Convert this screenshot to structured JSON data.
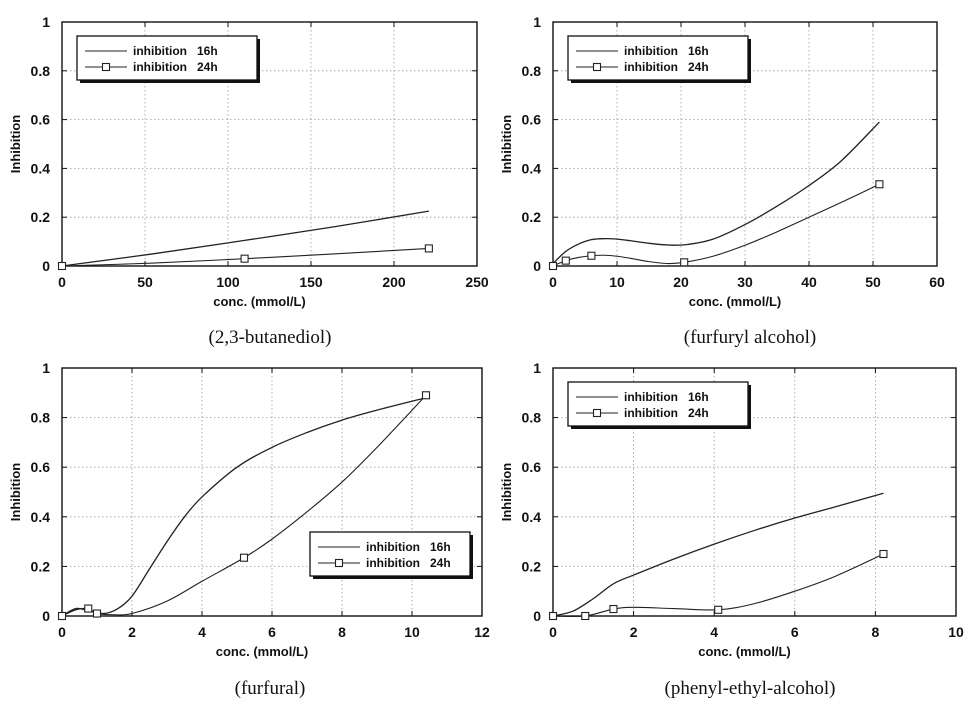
{
  "chart_data": [
    {
      "type": "line",
      "caption": "(2,3-butanediol)",
      "xlabel": "conc.  (mmol/L)",
      "ylabel": "Inhibition",
      "xlim": [
        0,
        250
      ],
      "ylim": [
        0,
        1
      ],
      "xticks": [
        0,
        50,
        100,
        150,
        200,
        250
      ],
      "yticks": [
        0,
        0.2,
        0.4,
        0.6,
        0.8,
        1
      ],
      "grid": true,
      "legend_position": "top-left",
      "series": [
        {
          "name": "inhibition   16h",
          "marker": "none",
          "x": [
            0,
            55,
            110,
            165,
            221
          ],
          "y": [
            0,
            0.05,
            0.105,
            0.162,
            0.225
          ],
          "points": []
        },
        {
          "name": "inhibition   24h",
          "marker": "square",
          "x": [
            0,
            55,
            110,
            165,
            221
          ],
          "y": [
            0,
            0.012,
            0.03,
            0.05,
            0.072
          ],
          "points": [
            0,
            2,
            4
          ]
        }
      ]
    },
    {
      "type": "line",
      "caption": "(furfuryl alcohol)",
      "xlabel": "conc.  (mmol/L)",
      "ylabel": "Inhibition",
      "xlim": [
        0,
        60
      ],
      "ylim": [
        0,
        1
      ],
      "xticks": [
        0,
        10,
        20,
        30,
        40,
        50,
        60
      ],
      "yticks": [
        0,
        0.2,
        0.4,
        0.6,
        0.8,
        1
      ],
      "grid": true,
      "legend_position": "top-left",
      "series": [
        {
          "name": "inhibition   16h",
          "marker": "none",
          "x": [
            0,
            2,
            4,
            6,
            8,
            10,
            12,
            15,
            18,
            21,
            25,
            30,
            35,
            40,
            45,
            51
          ],
          "y": [
            0.01,
            0.06,
            0.09,
            0.108,
            0.112,
            0.11,
            0.104,
            0.093,
            0.086,
            0.088,
            0.11,
            0.17,
            0.245,
            0.33,
            0.43,
            0.59
          ],
          "points": []
        },
        {
          "name": "inhibition   24h",
          "marker": "square",
          "x": [
            0,
            2,
            4,
            6,
            8,
            10,
            12,
            15,
            18,
            20.5,
            25,
            30,
            35,
            40,
            45,
            51
          ],
          "y": [
            0,
            0.022,
            0.035,
            0.042,
            0.044,
            0.04,
            0.032,
            0.018,
            0.01,
            0.015,
            0.04,
            0.085,
            0.14,
            0.2,
            0.26,
            0.335
          ],
          "points": [
            0,
            1,
            3,
            9,
            15
          ]
        }
      ]
    },
    {
      "type": "line",
      "caption": "(furfural)",
      "xlabel": "conc.  (mmol/L)",
      "ylabel": "Inhibition",
      "xlim": [
        0,
        12
      ],
      "ylim": [
        0,
        1
      ],
      "xticks": [
        0,
        2,
        4,
        6,
        8,
        10,
        12
      ],
      "yticks": [
        0,
        0.2,
        0.4,
        0.6,
        0.8,
        1
      ],
      "grid": true,
      "legend_position": "bottom-right",
      "series": [
        {
          "name": "inhibition   16h",
          "marker": "none",
          "x": [
            0,
            0.4,
            0.8,
            1.2,
            1.6,
            2,
            2.5,
            3,
            3.5,
            4,
            5,
            6,
            7,
            8,
            9,
            10.4
          ],
          "y": [
            0,
            0.03,
            0.02,
            0.01,
            0.03,
            0.08,
            0.19,
            0.3,
            0.4,
            0.48,
            0.6,
            0.68,
            0.74,
            0.79,
            0.83,
            0.88
          ],
          "points": []
        },
        {
          "name": "inhibition   24h",
          "marker": "square",
          "x": [
            0,
            0.4,
            0.75,
            1,
            1.5,
            2,
            3,
            4,
            5.2,
            6,
            7,
            8,
            9,
            10.4
          ],
          "y": [
            0,
            0.025,
            0.03,
            0.01,
            0.005,
            0.01,
            0.06,
            0.14,
            0.235,
            0.31,
            0.42,
            0.54,
            0.68,
            0.89
          ],
          "points": [
            0,
            2,
            3,
            8,
            13
          ]
        }
      ]
    },
    {
      "type": "line",
      "caption": "(phenyl-ethyl-alcohol)",
      "xlabel": "conc.  (mmol/L)",
      "ylabel": "Inhibition",
      "xlim": [
        0,
        10
      ],
      "ylim": [
        0,
        1
      ],
      "xticks": [
        0,
        2,
        4,
        6,
        8,
        10
      ],
      "yticks": [
        0,
        0.2,
        0.4,
        0.6,
        0.8,
        1
      ],
      "grid": true,
      "legend_position": "top-left",
      "series": [
        {
          "name": "inhibition   16h",
          "marker": "none",
          "x": [
            0,
            0.5,
            1,
            1.5,
            2,
            3,
            4,
            5,
            6,
            7,
            8.2
          ],
          "y": [
            0,
            0.02,
            0.07,
            0.13,
            0.165,
            0.23,
            0.29,
            0.345,
            0.395,
            0.44,
            0.495
          ],
          "points": []
        },
        {
          "name": "inhibition   24h",
          "marker": "square",
          "x": [
            0,
            0.8,
            1.5,
            2,
            3,
            4.1,
            5,
            6,
            7,
            8.2
          ],
          "y": [
            0,
            0,
            0.028,
            0.035,
            0.03,
            0.025,
            0.05,
            0.1,
            0.16,
            0.25
          ],
          "points": [
            0,
            1,
            2,
            5,
            9
          ]
        }
      ]
    }
  ]
}
